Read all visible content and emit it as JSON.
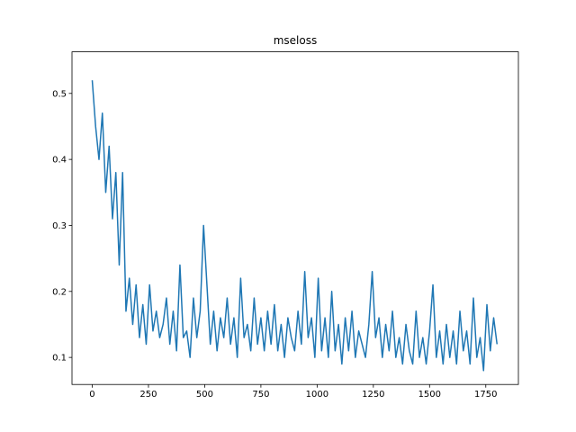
{
  "chart_data": {
    "type": "line",
    "title": "mseloss",
    "x": [
      0,
      15,
      30,
      45,
      60,
      75,
      90,
      105,
      120,
      135,
      150,
      165,
      180,
      195,
      210,
      225,
      240,
      255,
      270,
      285,
      300,
      315,
      330,
      345,
      360,
      375,
      390,
      405,
      420,
      435,
      450,
      465,
      480,
      495,
      510,
      525,
      540,
      555,
      570,
      585,
      600,
      615,
      630,
      645,
      660,
      675,
      690,
      705,
      720,
      735,
      750,
      765,
      780,
      795,
      810,
      825,
      840,
      855,
      870,
      885,
      900,
      915,
      930,
      945,
      960,
      975,
      990,
      1005,
      1020,
      1035,
      1050,
      1065,
      1080,
      1095,
      1110,
      1125,
      1140,
      1155,
      1170,
      1185,
      1200,
      1215,
      1230,
      1245,
      1260,
      1275,
      1290,
      1305,
      1320,
      1335,
      1350,
      1365,
      1380,
      1395,
      1410,
      1425,
      1440,
      1455,
      1470,
      1485,
      1500,
      1515,
      1530,
      1545,
      1560,
      1575,
      1590,
      1605,
      1620,
      1635,
      1650,
      1665,
      1680,
      1695,
      1710,
      1725,
      1740,
      1755,
      1770,
      1785,
      1800
    ],
    "series": [
      {
        "color": "#1f77b4",
        "values": [
          0.52,
          0.45,
          0.4,
          0.47,
          0.35,
          0.42,
          0.31,
          0.38,
          0.24,
          0.38,
          0.17,
          0.22,
          0.15,
          0.21,
          0.13,
          0.18,
          0.12,
          0.21,
          0.14,
          0.17,
          0.13,
          0.15,
          0.19,
          0.12,
          0.17,
          0.11,
          0.24,
          0.13,
          0.14,
          0.1,
          0.19,
          0.13,
          0.17,
          0.3,
          0.21,
          0.12,
          0.17,
          0.11,
          0.16,
          0.13,
          0.19,
          0.12,
          0.16,
          0.1,
          0.22,
          0.13,
          0.15,
          0.11,
          0.19,
          0.12,
          0.16,
          0.11,
          0.17,
          0.12,
          0.18,
          0.11,
          0.15,
          0.1,
          0.16,
          0.13,
          0.11,
          0.17,
          0.12,
          0.23,
          0.13,
          0.16,
          0.1,
          0.22,
          0.11,
          0.16,
          0.1,
          0.2,
          0.11,
          0.15,
          0.09,
          0.16,
          0.11,
          0.17,
          0.1,
          0.14,
          0.12,
          0.1,
          0.15,
          0.23,
          0.13,
          0.16,
          0.1,
          0.15,
          0.11,
          0.17,
          0.1,
          0.13,
          0.09,
          0.15,
          0.11,
          0.09,
          0.17,
          0.1,
          0.13,
          0.09,
          0.14,
          0.21,
          0.1,
          0.14,
          0.09,
          0.15,
          0.1,
          0.14,
          0.09,
          0.17,
          0.11,
          0.14,
          0.09,
          0.19,
          0.1,
          0.13,
          0.08,
          0.18,
          0.11,
          0.16,
          0.12
        ]
      }
    ],
    "xlim": [
      -90,
      1895
    ],
    "ylim": [
      0.059,
      0.563
    ],
    "xticks": [
      0,
      250,
      500,
      750,
      1000,
      1250,
      1500,
      1750
    ],
    "yticks": [
      0.1,
      0.2,
      0.3,
      0.4,
      0.5
    ]
  }
}
